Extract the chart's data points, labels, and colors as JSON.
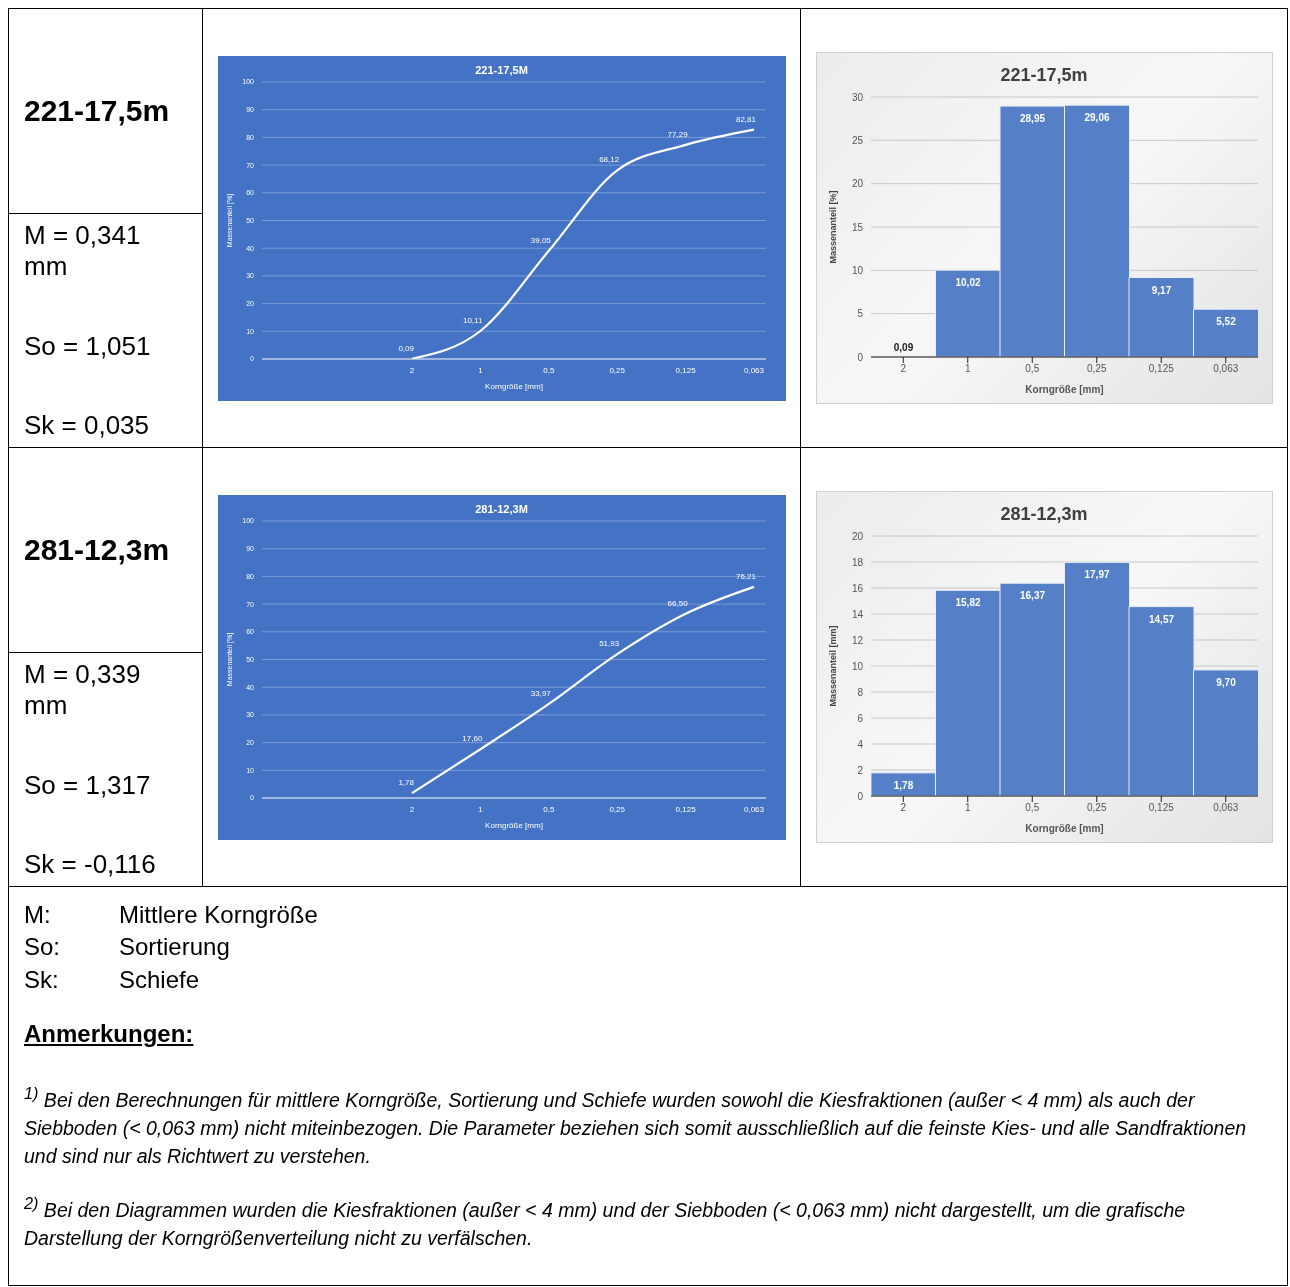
{
  "chart_data": [
    {
      "type": "other",
      "title": "221-17,5m",
      "annotations": [
        "M = 0,341 mm",
        "So = 1,051",
        "Sk = 0,035"
      ]
    },
    {
      "type": "line",
      "title": "221-17,5M",
      "xlabel": "Korngröße [mm]",
      "ylabel": "Massenanteil [%]",
      "categories": [
        "2",
        "1",
        "0,5",
        "0,25",
        "0,125",
        "0,063"
      ],
      "series": [
        {
          "color": "#ffffff",
          "values": [
            0.09,
            10.11,
            39.05,
            68.12,
            77.29,
            82.81
          ],
          "value_labels": [
            "0,09",
            "10,11",
            "39,05",
            "68,12",
            "77,29",
            "82,81"
          ]
        }
      ],
      "ylim": [
        0,
        100
      ],
      "yticks": [
        0,
        10,
        20,
        30,
        40,
        50,
        60,
        70,
        80,
        90,
        100
      ],
      "grid": "y",
      "marker": "none",
      "legend": false
    },
    {
      "type": "bar",
      "title": "221-17,5m",
      "xlabel": "Korngröße [mm]",
      "ylabel": "Massenanteil [%]",
      "categories": [
        "2",
        "1",
        "0,5",
        "0,25",
        "0,125",
        "0,063"
      ],
      "values": [
        0.09,
        10.02,
        28.95,
        29.06,
        9.17,
        5.52
      ],
      "value_labels": [
        "0,09",
        "10,02",
        "28,95",
        "29,06",
        "9,17",
        "5,52"
      ],
      "color": "#5580c8",
      "ylim": [
        0,
        30
      ],
      "yticks": [
        0,
        5,
        10,
        15,
        20,
        25,
        30
      ],
      "grid": "y",
      "legend": false
    },
    {
      "type": "other",
      "title": "281-12,3m",
      "annotations": [
        "M = 0,339 mm",
        "So = 1,317",
        "Sk = -0,116"
      ]
    },
    {
      "type": "line",
      "title": "281-12,3M",
      "xlabel": "Korngröße [mm]",
      "ylabel": "Massenanteil [%]",
      "categories": [
        "2",
        "1",
        "0,5",
        "0,25",
        "0,125",
        "0,063"
      ],
      "series": [
        {
          "color": "#ffffff",
          "values": [
            1.78,
            17.6,
            33.97,
            51.93,
            66.5,
            76.21
          ],
          "value_labels": [
            "1,78",
            "17,60",
            "33,97",
            "51,93",
            "66,50",
            "76,21"
          ]
        }
      ],
      "ylim": [
        0,
        100
      ],
      "yticks": [
        0,
        10,
        20,
        30,
        40,
        50,
        60,
        70,
        80,
        90,
        100
      ],
      "grid": "y",
      "marker": "none",
      "legend": false
    },
    {
      "type": "bar",
      "title": "281-12,3m",
      "xlabel": "Korngröße [mm]",
      "ylabel": "Massenanteil [mm]",
      "categories": [
        "2",
        "1",
        "0,5",
        "0,25",
        "0,125",
        "0,063"
      ],
      "values": [
        1.78,
        15.82,
        16.37,
        17.97,
        14.57,
        9.7
      ],
      "value_labels": [
        "1,78",
        "15,82",
        "16,37",
        "17,97",
        "14,57",
        "9,70"
      ],
      "color": "#5580c8",
      "ylim": [
        0,
        20
      ],
      "yticks": [
        0,
        2,
        4,
        6,
        8,
        10,
        12,
        14,
        16,
        18,
        20
      ],
      "grid": "y",
      "legend": false
    },
    {
      "type": "other",
      "annotations": [
        "M: Mittlere Korngröße",
        "So: Sortierung",
        "Sk: Schiefe"
      ]
    },
    {
      "type": "other",
      "title": "Anmerkungen:",
      "annotations": [
        "$^{1)}$ Bei den Berechnungen für mittlere Korngröße, Sortierung und Schiefe wurden sowohl die Kiesfraktionen (außer < 4 mm) als auch der Siebboden (< 0,063 mm) nicht miteinbezogen. Die Parameter beziehen sich somit ausschließlich auf die feinste Kies- und alle Sandfraktionen und sind nur als Richtwert zu verstehen.",
        "$^{2)}$ Bei den Diagrammen wurden die Kiesfraktionen (außer < 4 mm) und der Siebboden (< 0,063 mm) nicht dargestellt, um die grafische Darstellung der Korngrößenverteilung nicht zu verfälschen."
      ]
    }
  ]
}
